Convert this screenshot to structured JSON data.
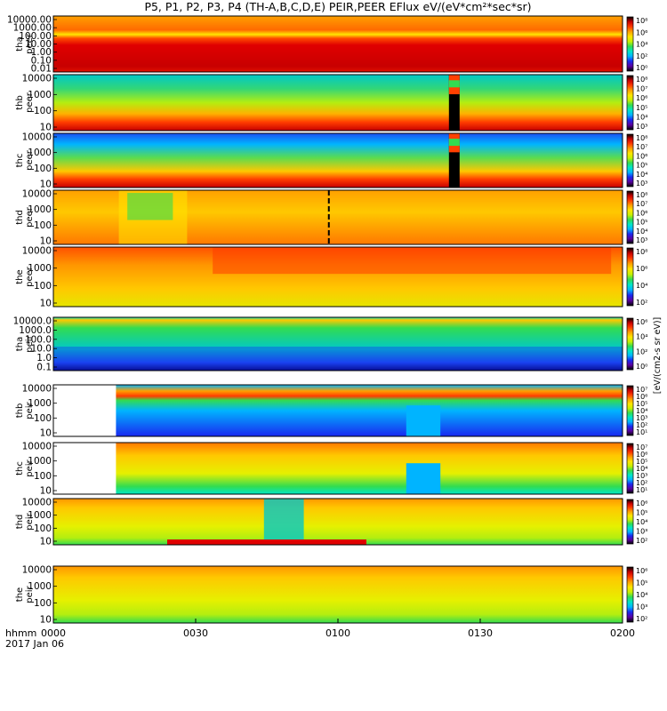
{
  "title": "P5, P1, P2, P3, P4 (TH-A,B,C,D,E) PEIR,PEER EFlux eV/(eV*cm²*sec*sr)",
  "time_axis": {
    "row_label": "hhmm",
    "date_label": "2017 Jan 06",
    "ticks": [
      "0000",
      "0030",
      "0100",
      "0130",
      "0200"
    ]
  },
  "colorbar_unit": "[eV/(cm2-s sr eV)]",
  "colors": {
    "scale": [
      "#000000",
      "#5a00a0",
      "#1a28f0",
      "#00b4ff",
      "#00e6c8",
      "#32dc50",
      "#c8f000",
      "#ffe600",
      "#ffa000",
      "#ff3c00",
      "#c80000",
      "#000000"
    ],
    "frame": "#000000"
  },
  "chart_data": [
    {
      "type": "heatmap",
      "probe": "tha",
      "species": "peer",
      "ylabel": "tha peer",
      "yscale": "log",
      "yticks": [
        "10000.00",
        "1000.00",
        "100.00",
        "10.00",
        "1.00",
        "0.10",
        "0.01"
      ],
      "cbar_ticks": [
        "10⁸",
        "10⁶",
        "10⁴",
        "10²",
        "10⁰"
      ]
    },
    {
      "type": "heatmap",
      "probe": "thb",
      "species": "peer",
      "ylabel": "thb peer",
      "yscale": "log",
      "yticks": [
        "10000",
        "1000",
        "100",
        "10"
      ],
      "cbar_ticks": [
        "10⁸",
        "10⁷",
        "10⁶",
        "10⁵",
        "10⁴",
        "10³"
      ]
    },
    {
      "type": "heatmap",
      "probe": "thc",
      "species": "peer",
      "ylabel": "thc peer",
      "yscale": "log",
      "yticks": [
        "10000",
        "1000",
        "100",
        "10"
      ],
      "cbar_ticks": [
        "10⁸",
        "10⁷",
        "10⁶",
        "10⁵",
        "10⁴",
        "10³"
      ]
    },
    {
      "type": "heatmap",
      "probe": "thd",
      "species": "peer",
      "ylabel": "thd peer",
      "yscale": "log",
      "yticks": [
        "10000",
        "1000",
        "100",
        "10"
      ],
      "cbar_ticks": [
        "10⁸",
        "10⁷",
        "10⁶",
        "10⁵",
        "10⁴",
        "10³"
      ]
    },
    {
      "type": "heatmap",
      "probe": "the",
      "species": "peer",
      "ylabel": "the peer",
      "yscale": "log",
      "yticks": [
        "10000",
        "1000",
        "100",
        "10"
      ],
      "cbar_ticks": [
        "10⁸",
        "10⁶",
        "10⁴",
        "10²"
      ]
    },
    {
      "type": "heatmap",
      "probe": "tha",
      "species": "peir",
      "ylabel": "tha peir",
      "yscale": "log",
      "yticks": [
        "10000.0",
        "1000.0",
        "100.0",
        "10.0",
        "1.0",
        "0.1"
      ],
      "cbar_ticks": [
        "10⁶",
        "10⁴",
        "10²",
        "10⁰"
      ]
    },
    {
      "type": "heatmap",
      "probe": "thb",
      "species": "peir",
      "ylabel": "thb peir",
      "yscale": "log",
      "yticks": [
        "10000",
        "1000",
        "100",
        "10"
      ],
      "cbar_ticks": [
        "10⁷",
        "10⁶",
        "10⁵",
        "10⁴",
        "10³",
        "10²",
        "10¹"
      ]
    },
    {
      "type": "heatmap",
      "probe": "thc",
      "species": "peir",
      "ylabel": "thc peir",
      "yscale": "log",
      "yticks": [
        "10000",
        "1000",
        "100",
        "10"
      ],
      "cbar_ticks": [
        "10⁷",
        "10⁶",
        "10⁵",
        "10⁴",
        "10³",
        "10²",
        "10¹"
      ]
    },
    {
      "type": "heatmap",
      "probe": "thd",
      "species": "peir",
      "ylabel": "thd peir",
      "yscale": "log",
      "yticks": [
        "10000",
        "1000",
        "100",
        "10"
      ],
      "cbar_ticks": [
        "10⁶",
        "10⁵",
        "10⁴",
        "10³",
        "10²"
      ]
    },
    {
      "type": "heatmap",
      "probe": "the",
      "species": "peir",
      "ylabel": "the peir",
      "yscale": "log",
      "yticks": [
        "10000",
        "1000",
        "100",
        "10"
      ],
      "cbar_ticks": [
        "10⁶",
        "10⁵",
        "10⁴",
        "10³",
        "10²"
      ]
    }
  ]
}
